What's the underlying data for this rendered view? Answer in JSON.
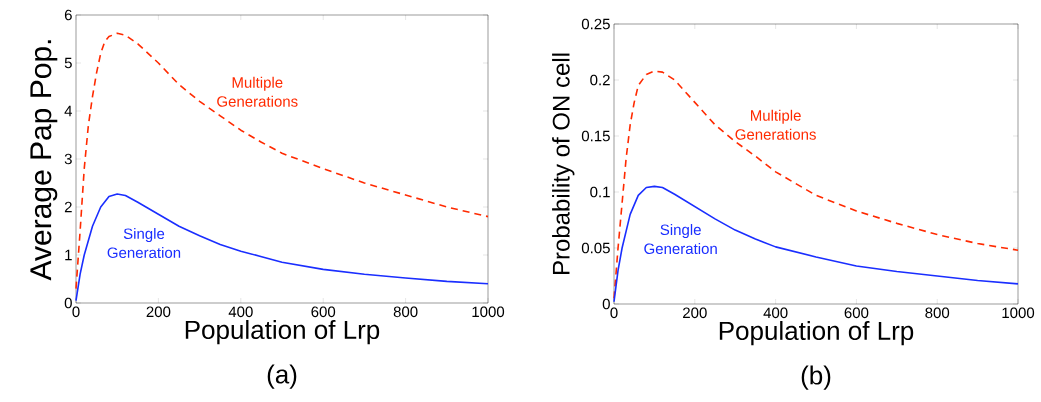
{
  "chart_data": [
    {
      "type": "line",
      "xlabel": "Population of Lrp",
      "ylabel": "Average Pap Pop.",
      "annotations": [
        "(a)"
      ],
      "xlim": [
        0,
        1000
      ],
      "ylim": [
        0,
        6
      ],
      "xticks": [
        0,
        200,
        400,
        600,
        800,
        1000
      ],
      "yticks": [
        0,
        1,
        2,
        3,
        4,
        5,
        6
      ],
      "grid": false,
      "series": [
        {
          "name": "Multiple Generations",
          "color": "#ff2a00",
          "line_style": "dashed",
          "x": [
            0,
            10,
            20,
            30,
            40,
            50,
            60,
            70,
            80,
            100,
            120,
            150,
            200,
            250,
            300,
            350,
            400,
            450,
            500,
            600,
            700,
            800,
            900,
            1000
          ],
          "values": [
            0.3,
            1.5,
            2.8,
            3.7,
            4.3,
            4.8,
            5.2,
            5.45,
            5.55,
            5.62,
            5.58,
            5.4,
            5.0,
            4.55,
            4.2,
            3.9,
            3.6,
            3.35,
            3.12,
            2.8,
            2.5,
            2.25,
            2.0,
            1.8
          ]
        },
        {
          "name": "Single Generation",
          "color": "#1a2eff",
          "line_style": "solid",
          "x": [
            0,
            10,
            20,
            40,
            60,
            80,
            100,
            120,
            150,
            200,
            250,
            300,
            350,
            400,
            500,
            600,
            700,
            800,
            900,
            1000
          ],
          "values": [
            0.05,
            0.6,
            1.0,
            1.6,
            2.0,
            2.22,
            2.27,
            2.24,
            2.1,
            1.85,
            1.6,
            1.4,
            1.22,
            1.08,
            0.85,
            0.7,
            0.6,
            0.52,
            0.45,
            0.4
          ]
        }
      ]
    },
    {
      "type": "line",
      "xlabel": "Population of Lrp",
      "ylabel": "Probability of ON cell",
      "annotations": [
        "(b)"
      ],
      "xlim": [
        0,
        1000
      ],
      "ylim": [
        0,
        0.25
      ],
      "xticks": [
        0,
        200,
        400,
        600,
        800,
        1000
      ],
      "yticks": [
        0,
        0.05,
        0.1,
        0.15,
        0.2,
        0.25
      ],
      "grid": false,
      "series": [
        {
          "name": "Multiple Generations",
          "color": "#ff2a00",
          "line_style": "dashed",
          "x": [
            0,
            10,
            20,
            30,
            40,
            50,
            60,
            80,
            100,
            120,
            150,
            200,
            250,
            300,
            350,
            400,
            500,
            600,
            700,
            800,
            900,
            1000
          ],
          "values": [
            0.005,
            0.05,
            0.09,
            0.13,
            0.16,
            0.18,
            0.195,
            0.205,
            0.208,
            0.207,
            0.2,
            0.18,
            0.16,
            0.145,
            0.132,
            0.118,
            0.097,
            0.083,
            0.072,
            0.062,
            0.054,
            0.048
          ]
        },
        {
          "name": "Single Generation",
          "color": "#1a2eff",
          "line_style": "solid",
          "x": [
            0,
            10,
            20,
            40,
            60,
            80,
            100,
            120,
            150,
            200,
            250,
            300,
            350,
            400,
            500,
            600,
            700,
            800,
            900,
            1000
          ],
          "values": [
            0.002,
            0.03,
            0.05,
            0.08,
            0.097,
            0.104,
            0.105,
            0.104,
            0.098,
            0.087,
            0.076,
            0.066,
            0.058,
            0.051,
            0.042,
            0.034,
            0.029,
            0.025,
            0.021,
            0.018
          ]
        }
      ]
    }
  ]
}
